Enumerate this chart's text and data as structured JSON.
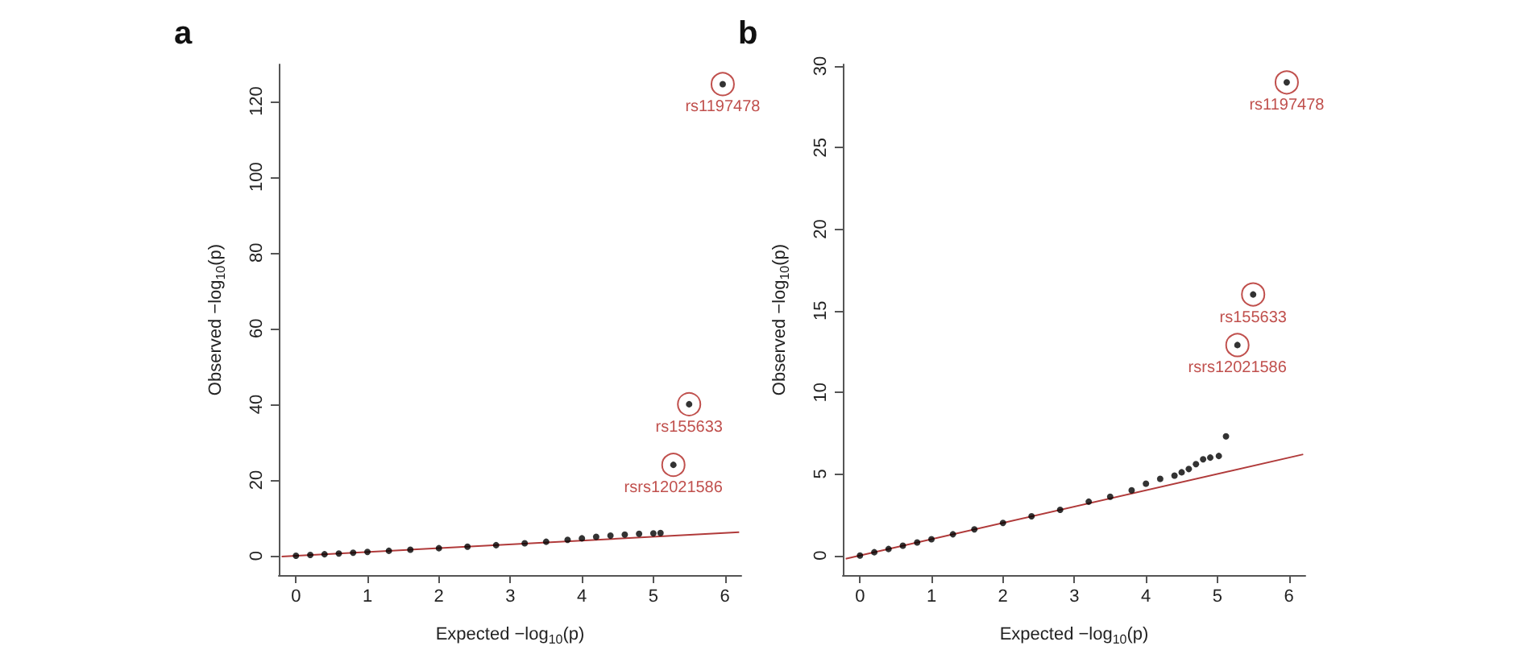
{
  "chart_data": [
    {
      "type": "scatter",
      "title": "a",
      "xlabel": "Expected −log$_{10}$(p)",
      "ylabel": "Observed −log$_{10}$(p)",
      "xlim": [
        -0.24,
        6.23
      ],
      "ylim": [
        -5.1,
        129.7
      ],
      "xticks": [
        0,
        1,
        2,
        3,
        4,
        5,
        6
      ],
      "yticks": [
        0,
        20,
        40,
        60,
        80,
        100,
        120
      ],
      "grid": false,
      "marker": "circle",
      "series": [
        {
          "color": "#000000",
          "x": [
            0,
            0.2,
            0.4,
            0.6,
            0.8,
            1,
            1.3,
            1.6,
            2,
            2.4,
            2.8,
            3.2,
            3.5,
            3.8,
            4,
            4.2,
            4.4,
            4.6,
            4.8,
            5,
            5.1,
            5.28,
            5.5,
            5.97
          ],
          "values": [
            0,
            0.2,
            0.4,
            0.6,
            0.8,
            1,
            1.3,
            1.6,
            2,
            2.4,
            2.8,
            3.3,
            3.7,
            4.2,
            4.6,
            5,
            5.3,
            5.6,
            5.8,
            5.9,
            6,
            24,
            40,
            124.5
          ]
        },
        {
          "type": "line",
          "marker": "none",
          "color": "#b03a3a",
          "x": [
            -0.2,
            6.2
          ],
          "values": [
            -0.2,
            6.2
          ]
        }
      ],
      "annotations": [
        {
          "text": "rs1197478",
          "x": 5.97,
          "y": 124.5
        },
        {
          "text": "rs155633",
          "x": 5.5,
          "y": 40
        },
        {
          "text": "rsrs12021586",
          "x": 5.28,
          "y": 24
        }
      ]
    },
    {
      "type": "scatter",
      "title": "b",
      "xlabel": "Expected −log$_{10}$(p)",
      "ylabel": "Observed −log$_{10}$(p)",
      "xlim": [
        -0.24,
        6.23
      ],
      "ylim": [
        -1.2,
        30.1
      ],
      "xticks": [
        0,
        1,
        2,
        3,
        4,
        5,
        6
      ],
      "yticks": [
        0,
        5,
        10,
        15,
        20,
        25,
        30
      ],
      "grid": false,
      "marker": "circle",
      "series": [
        {
          "color": "#000000",
          "x": [
            0,
            0.2,
            0.4,
            0.6,
            0.8,
            1,
            1.3,
            1.6,
            2,
            2.4,
            2.8,
            3.2,
            3.5,
            3.8,
            4,
            4.2,
            4.4,
            4.5,
            4.6,
            4.7,
            4.8,
            4.9,
            5.02,
            5.12,
            5.28,
            5.5,
            5.97
          ],
          "values": [
            0,
            0.2,
            0.4,
            0.6,
            0.8,
            1,
            1.3,
            1.6,
            2,
            2.4,
            2.8,
            3.3,
            3.6,
            4.0,
            4.4,
            4.7,
            4.9,
            5.1,
            5.3,
            5.6,
            5.9,
            6.0,
            6.1,
            7.3,
            12.9,
            16,
            29
          ]
        },
        {
          "type": "line",
          "marker": "none",
          "color": "#b03a3a",
          "x": [
            -0.2,
            6.2
          ],
          "values": [
            -0.2,
            6.2
          ]
        }
      ],
      "annotations": [
        {
          "text": "rs1197478",
          "x": 5.97,
          "y": 29
        },
        {
          "text": "rs155633",
          "x": 5.5,
          "y": 16
        },
        {
          "text": "rsrs12021586",
          "x": 5.28,
          "y": 12.9
        }
      ]
    }
  ]
}
